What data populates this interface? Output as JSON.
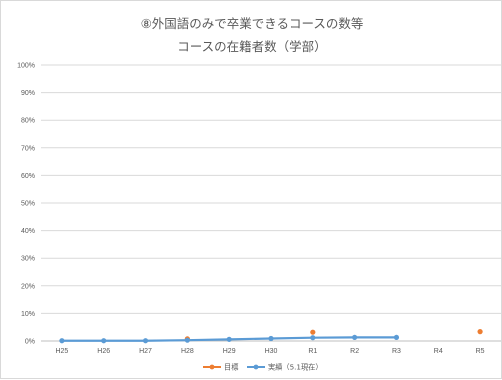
{
  "chart_data": {
    "type": "line",
    "title": "⑧外国語のみで卒業できるコースの数等",
    "subtitle": "コースの在籍者数（学部）",
    "categories": [
      "H25",
      "H26",
      "H27",
      "H28",
      "H29",
      "H30",
      "R1",
      "R2",
      "R3",
      "R4",
      "R5"
    ],
    "yticks": [
      "0%",
      "10%",
      "20%",
      "30%",
      "40%",
      "50%",
      "60%",
      "70%",
      "80%",
      "90%",
      "100%"
    ],
    "ylim": [
      0,
      100
    ],
    "grid": true,
    "legend_position": "bottom",
    "series": [
      {
        "name": "目標",
        "color": "#ed7d31",
        "style": "markers",
        "values": [
          null,
          null,
          null,
          0.8,
          null,
          null,
          3.2,
          null,
          null,
          null,
          3.4
        ]
      },
      {
        "name": "実績（5.1現在）",
        "color": "#5b9bd5",
        "style": "line",
        "values": [
          0.1,
          0.1,
          0.1,
          0.3,
          0.6,
          0.9,
          1.2,
          1.3,
          1.3,
          null,
          null
        ]
      }
    ]
  }
}
